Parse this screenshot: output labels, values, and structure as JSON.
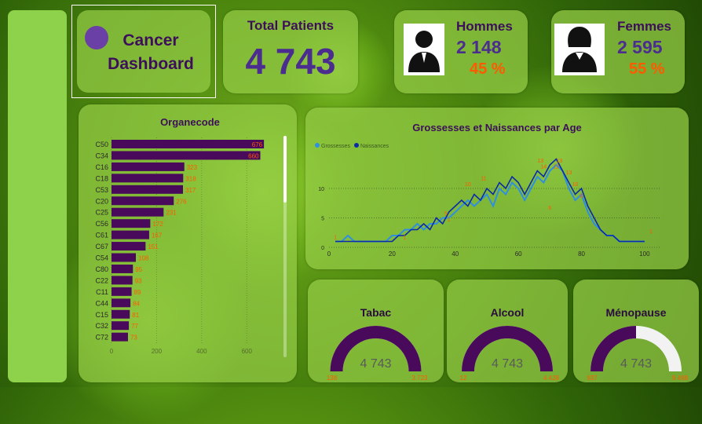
{
  "header": {
    "title_line1": "Cancer",
    "title_line2": "Dashboard",
    "total_label": "Total Patients",
    "total_value": "4 743",
    "hommes_label": "Hommes",
    "hommes_value": "2 148",
    "hommes_pct": "45 %",
    "femmes_label": "Femmes",
    "femmes_value": "2 595",
    "femmes_pct": "55 %"
  },
  "colors": {
    "accent_purple": "#4a0a5c",
    "text_purple": "#4b2d8f",
    "label_orange": "#ff5a00",
    "series_grossesses": "#2f8fe0",
    "series_naissances": "#0a2aa8"
  },
  "chart_data": [
    {
      "type": "bar",
      "orientation": "horizontal",
      "title": "Organecode",
      "categories": [
        "C50",
        "C34",
        "C16",
        "C18",
        "C53",
        "C20",
        "C25",
        "C56",
        "C61",
        "C67",
        "C54",
        "C80",
        "C22",
        "C11",
        "C44",
        "C15",
        "C32",
        "C72"
      ],
      "values": [
        676,
        660,
        323,
        318,
        317,
        276,
        231,
        172,
        167,
        151,
        108,
        95,
        93,
        89,
        84,
        81,
        77,
        73
      ],
      "xlim": [
        0,
        700
      ],
      "xticks": [
        0,
        200,
        400,
        600
      ],
      "grid": true
    },
    {
      "type": "line",
      "title": "Grossesses et Naissances par Age",
      "legend": "top-left",
      "xlim": [
        0,
        105
      ],
      "ylim": [
        0,
        16
      ],
      "xticks": [
        0,
        20,
        40,
        60,
        80,
        100
      ],
      "yticks": [
        0,
        5,
        10
      ],
      "grid": true,
      "series": [
        {
          "name": "Grossesses",
          "x": [
            2,
            4,
            6,
            8,
            10,
            12,
            14,
            16,
            18,
            20,
            22,
            24,
            26,
            28,
            30,
            32,
            34,
            36,
            38,
            40,
            42,
            44,
            46,
            48,
            50,
            52,
            54,
            56,
            58,
            60,
            62,
            64,
            66,
            68,
            70,
            72,
            74,
            76,
            78,
            80,
            82,
            84,
            86,
            88,
            90,
            92,
            94,
            96,
            98,
            100
          ],
          "y": [
            1,
            1,
            2,
            1,
            1,
            1,
            1,
            1,
            1,
            2,
            2,
            3,
            3,
            4,
            3,
            4,
            4,
            5,
            5,
            6,
            7,
            8,
            7,
            8,
            9,
            7,
            10,
            9,
            11,
            10,
            8,
            10,
            12,
            11,
            13,
            14,
            13,
            10,
            8,
            9,
            6,
            4,
            3,
            2,
            2,
            1,
            1,
            1,
            1,
            1
          ]
        },
        {
          "name": "Naissances",
          "x": [
            2,
            4,
            6,
            8,
            10,
            12,
            14,
            16,
            18,
            20,
            22,
            24,
            26,
            28,
            30,
            32,
            34,
            36,
            38,
            40,
            42,
            44,
            46,
            48,
            50,
            52,
            54,
            56,
            58,
            60,
            62,
            64,
            66,
            68,
            70,
            72,
            74,
            76,
            78,
            80,
            82,
            84,
            86,
            88,
            90,
            92,
            94,
            96,
            98,
            100
          ],
          "y": [
            1,
            1,
            1,
            1,
            1,
            1,
            1,
            1,
            1,
            1,
            2,
            2,
            3,
            3,
            4,
            3,
            5,
            4,
            6,
            7,
            8,
            7,
            9,
            8,
            10,
            9,
            11,
            10,
            12,
            11,
            9,
            11,
            13,
            12,
            14,
            15,
            13,
            11,
            9,
            10,
            7,
            5,
            3,
            2,
            2,
            1,
            1,
            1,
            1,
            1
          ]
        }
      ],
      "data_labels": [
        {
          "x": 2,
          "y": 1,
          "text": "1"
        },
        {
          "x": 24,
          "y": 1,
          "text": "1"
        },
        {
          "x": 37,
          "y": 5,
          "text": "5"
        },
        {
          "x": 38,
          "y": 4,
          "text": "1"
        },
        {
          "x": 44,
          "y": 10,
          "text": "10"
        },
        {
          "x": 49,
          "y": 11,
          "text": "11"
        },
        {
          "x": 67,
          "y": 14,
          "text": "13"
        },
        {
          "x": 68,
          "y": 13,
          "text": "14"
        },
        {
          "x": 72,
          "y": 13,
          "text": "12"
        },
        {
          "x": 73,
          "y": 14,
          "text": "13"
        },
        {
          "x": 76,
          "y": 12,
          "text": "13"
        },
        {
          "x": 78,
          "y": 10,
          "text": "10"
        },
        {
          "x": 80,
          "y": 8,
          "text": "8"
        },
        {
          "x": 70,
          "y": 6,
          "text": "6"
        },
        {
          "x": 102,
          "y": 2,
          "text": "1"
        }
      ]
    },
    {
      "type": "gauge",
      "title": "Tabac",
      "value": 4743,
      "value_label": "4 743",
      "min_label": "138",
      "max_label": "3 723",
      "fill_fraction": 1.0
    },
    {
      "type": "gauge",
      "title": "Alcool",
      "value": 4743,
      "value_label": "4 743",
      "min_label": "12",
      "max_label": "4 428",
      "fill_fraction": 1.0
    },
    {
      "type": "gauge",
      "title": "Ménopause",
      "value": 4743,
      "value_label": "4 743",
      "min_label": "937",
      "max_label": "9 488",
      "fill_fraction": 0.5
    }
  ]
}
